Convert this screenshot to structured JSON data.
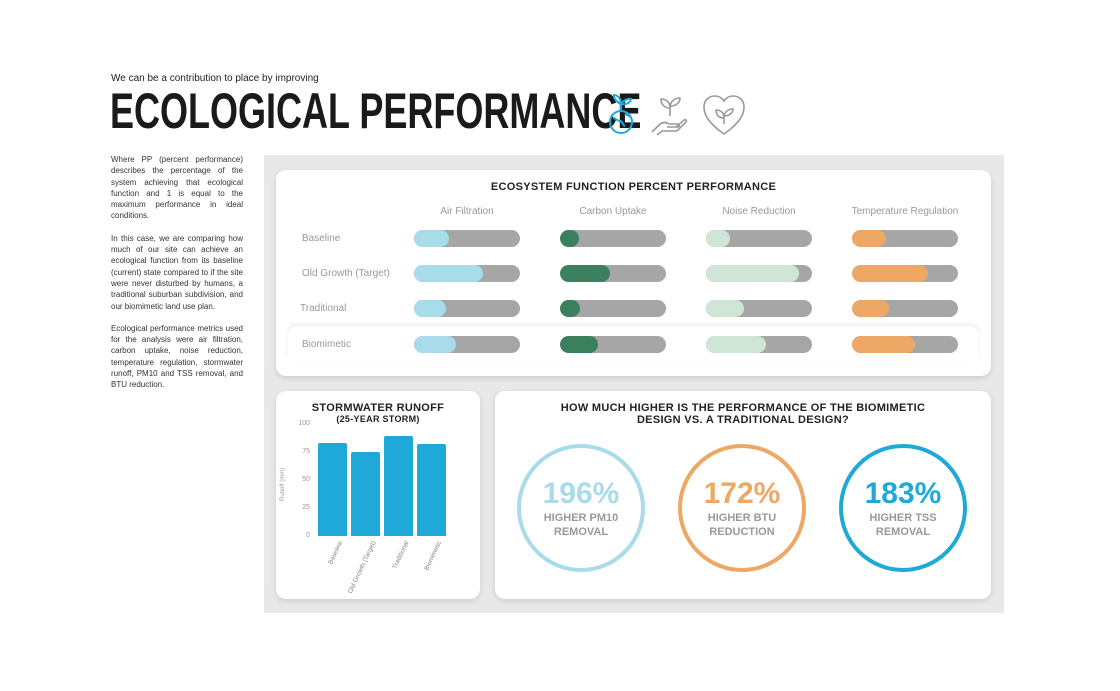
{
  "header": {
    "subtitle": "We can be a contribution to place by improving",
    "title": "ECOLOGICAL PERFORMANCE",
    "icons": [
      "earth-sprout-icon",
      "hand-plant-icon",
      "heart-leaf-icon"
    ]
  },
  "description": [
    "Where PP (percent performance) describes the percentage of the system achieving that ecological function and 1 is equal to the maximum performance in ideal conditions.",
    "In this case, we are comparing how much of our site can achieve an ecological function from its baseline (current) state compared to if the site were never disturbed by humans, a traditional suburban subdivision, and our biomimetic land use plan.",
    "Ecological performance metrics used for the analysis were air filtration, carbon uptake, noise reduction, temperature regulation, stormwater runoff, PM10 and TSS removal, and BTU reduction."
  ],
  "chart_data": [
    {
      "type": "bar",
      "title": "ECOSYSTEM FUNCTION PERCENT PERFORMANCE",
      "categories": [
        "Baseline",
        "Old Growth (Target)",
        "Traditional",
        "Biomimetic"
      ],
      "series": [
        {
          "name": "Air Filtration",
          "color": "#a8dcea",
          "values": [
            0.33,
            0.65,
            0.3,
            0.4
          ]
        },
        {
          "name": "Carbon Uptake",
          "color": "#3a7f5e",
          "values": [
            0.18,
            0.47,
            0.19,
            0.36
          ]
        },
        {
          "name": "Noise Reduction",
          "color": "#cfe6d6",
          "values": [
            0.23,
            0.88,
            0.36,
            0.57
          ]
        },
        {
          "name": "Temperature Regulation",
          "color": "#eda865",
          "values": [
            0.32,
            0.72,
            0.35,
            0.59
          ]
        }
      ],
      "ylim": [
        0,
        1
      ]
    },
    {
      "type": "bar",
      "title": "STORMWATER RUNOFF",
      "subtitle": "(25-YEAR STORM)",
      "categories": [
        "Baseline",
        "Old Growth (Target)",
        "Traditional",
        "Biomimetic"
      ],
      "values": [
        83,
        75,
        89,
        82
      ],
      "ylabel": "Runoff (mm)",
      "ylim": [
        0,
        100
      ],
      "yticks": [
        "0",
        "25",
        "50",
        "75",
        "100"
      ],
      "color": "#1ea9d8"
    }
  ],
  "comparison": {
    "title_line1": "HOW MUCH HIGHER IS THE PERFORMANCE OF THE BIOMIMETIC",
    "title_line2": "DESIGN VS. A TRADITIONAL DESIGN?",
    "items": [
      {
        "value": "196%",
        "line1": "HIGHER PM10",
        "line2": "REMOVAL",
        "color": "#a8dcea"
      },
      {
        "value": "172%",
        "line1": "HIGHER BTU",
        "line2": "REDUCTION",
        "color": "#eda865"
      },
      {
        "value": "183%",
        "line1": "HIGHER TSS",
        "line2": "REMOVAL",
        "color": "#1ea9d8"
      }
    ]
  }
}
